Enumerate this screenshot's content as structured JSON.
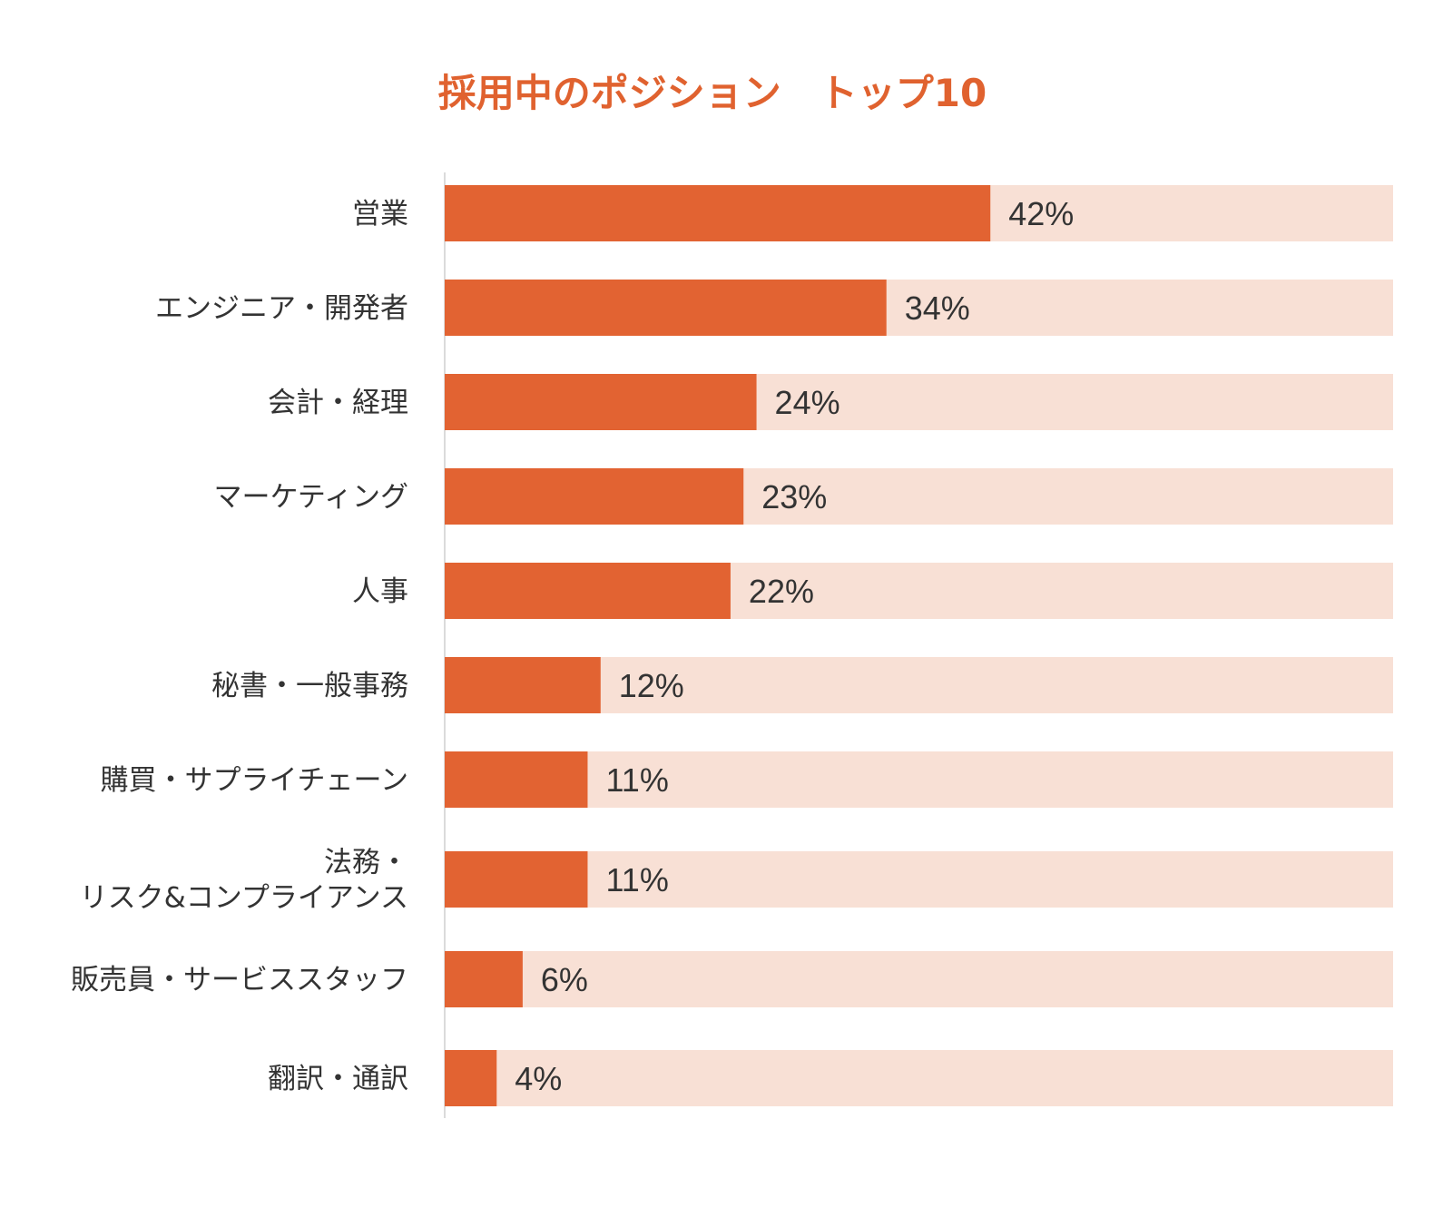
{
  "chart_data": {
    "type": "bar",
    "orientation": "horizontal",
    "title": "採用中のポジション　トップ10",
    "categories": [
      [
        "営業"
      ],
      [
        "エンジニア・開発者"
      ],
      [
        "会計・経理"
      ],
      [
        "マーケティング"
      ],
      [
        "人事"
      ],
      [
        "秘書・一般事務"
      ],
      [
        "購買・サプライチェーン"
      ],
      [
        "法務・",
        "リスク&コンプライアンス"
      ],
      [
        "販売員・サービススタッフ"
      ],
      [
        "翻訳・通訳"
      ]
    ],
    "values": [
      42,
      34,
      24,
      23,
      22,
      12,
      11,
      11,
      6,
      4
    ],
    "value_labels": [
      "42%",
      "34%",
      "24%",
      "23%",
      "22%",
      "12%",
      "11%",
      "11%",
      "6%",
      "4%"
    ],
    "xlim": [
      0,
      73
    ],
    "grid": false,
    "legend": "none"
  },
  "colors": {
    "title": "#e0622f",
    "bar": "#e26332",
    "track": "#f8e0d5",
    "axis": "#cfcfcf",
    "text": "#333333"
  }
}
